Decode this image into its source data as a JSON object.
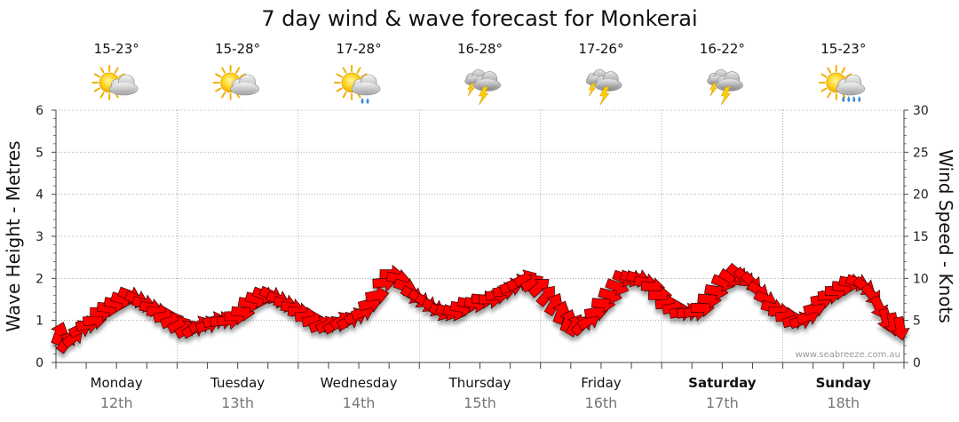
{
  "chart_data": {
    "type": "line",
    "title": "7 day wind & wave forecast for Monkerai",
    "ylabel_left": "Wave Height - Metres",
    "ylabel_right": "Wind Speed - Knots",
    "ylim_left": [
      0,
      6
    ],
    "ylim_right": [
      0,
      30
    ],
    "yticks_left": [
      "0",
      "1",
      "2",
      "3",
      "4",
      "5",
      "6"
    ],
    "yticks_right": [
      "0",
      "5",
      "10",
      "15",
      "20",
      "25",
      "30"
    ],
    "watermark": "www.seabreeze.com.au",
    "days": [
      {
        "name": "Monday",
        "date": "12th",
        "temp": "15-23°",
        "icon": "sun-cloud-icon",
        "bold": false
      },
      {
        "name": "Tuesday",
        "date": "13th",
        "temp": "15-28°",
        "icon": "sun-cloud-icon",
        "bold": false
      },
      {
        "name": "Wednesday",
        "date": "14th",
        "temp": "17-28°",
        "icon": "sun-cloud-drizzle-icon",
        "bold": false
      },
      {
        "name": "Thursday",
        "date": "15th",
        "temp": "16-28°",
        "icon": "storm-icon",
        "bold": false
      },
      {
        "name": "Friday",
        "date": "16th",
        "temp": "17-26°",
        "icon": "storm-icon",
        "bold": false
      },
      {
        "name": "Saturday",
        "date": "17th",
        "temp": "16-22°",
        "icon": "storm-icon",
        "bold": true
      },
      {
        "name": "Sunday",
        "date": "18th",
        "temp": "15-23°",
        "icon": "sun-cloud-rain-icon",
        "bold": true
      }
    ],
    "series": [
      {
        "name": "Wind Speed (knots)",
        "unit": "knots",
        "values": [
          3.5,
          2.5,
          3,
          4,
          4.5,
          5,
          6,
          6.5,
          7,
          7.5,
          8,
          7.5,
          7,
          6.5,
          6,
          5.5,
          5,
          4.5,
          4,
          4,
          4.5,
          4.5,
          5,
          5,
          5,
          5.5,
          6,
          7,
          7.5,
          8,
          8,
          7.5,
          7,
          6.5,
          6,
          5.5,
          5,
          4.5,
          4.5,
          4.5,
          5,
          5,
          5.5,
          6,
          7,
          8,
          9.5,
          10.5,
          10,
          9,
          8,
          7.5,
          7,
          6.5,
          6,
          6,
          6,
          6.5,
          7,
          7,
          7.5,
          7.5,
          8,
          8.5,
          9,
          9.5,
          10,
          9.5,
          9,
          8,
          7,
          6,
          5,
          4.5,
          4.5,
          5,
          6,
          7,
          8,
          9,
          10,
          10,
          10,
          9.5,
          9,
          8,
          7,
          6.5,
          6,
          6,
          6,
          6.5,
          7.5,
          8.5,
          9.5,
          10,
          10.5,
          10,
          9.5,
          8.5,
          7.5,
          6.5,
          6,
          5.5,
          5,
          5,
          5.5,
          6.5,
          7.5,
          8,
          8.5,
          9,
          9.5,
          9.5,
          9,
          8,
          6.5,
          5,
          4.5,
          4
        ],
        "wind_direction_deg": [
          200,
          215,
          230,
          245,
          260,
          265,
          270,
          275,
          280,
          285,
          290,
          290,
          285,
          280,
          275,
          260,
          250,
          245,
          240,
          240,
          245,
          250,
          255,
          260,
          265,
          270,
          275,
          280,
          285,
          290,
          295,
          290,
          285,
          280,
          275,
          265,
          260,
          250,
          245,
          240,
          240,
          240,
          245,
          250,
          255,
          260,
          265,
          270,
          280,
          290,
          300,
          305,
          305,
          300,
          295,
          290,
          285,
          280,
          280,
          280,
          275,
          270,
          265,
          260,
          255,
          250,
          245,
          240,
          230,
          220,
          210,
          200,
          200,
          210,
          225,
          240,
          260,
          275,
          285,
          290,
          290,
          290,
          285,
          280,
          275,
          270,
          265,
          260,
          260,
          260,
          265,
          270,
          275,
          280,
          290,
          300,
          310,
          315,
          315,
          305,
          295,
          285,
          275,
          265,
          255,
          250,
          250,
          255,
          260,
          265,
          270,
          275,
          280,
          290,
          305,
          320,
          335,
          345,
          350,
          350
        ]
      }
    ]
  }
}
